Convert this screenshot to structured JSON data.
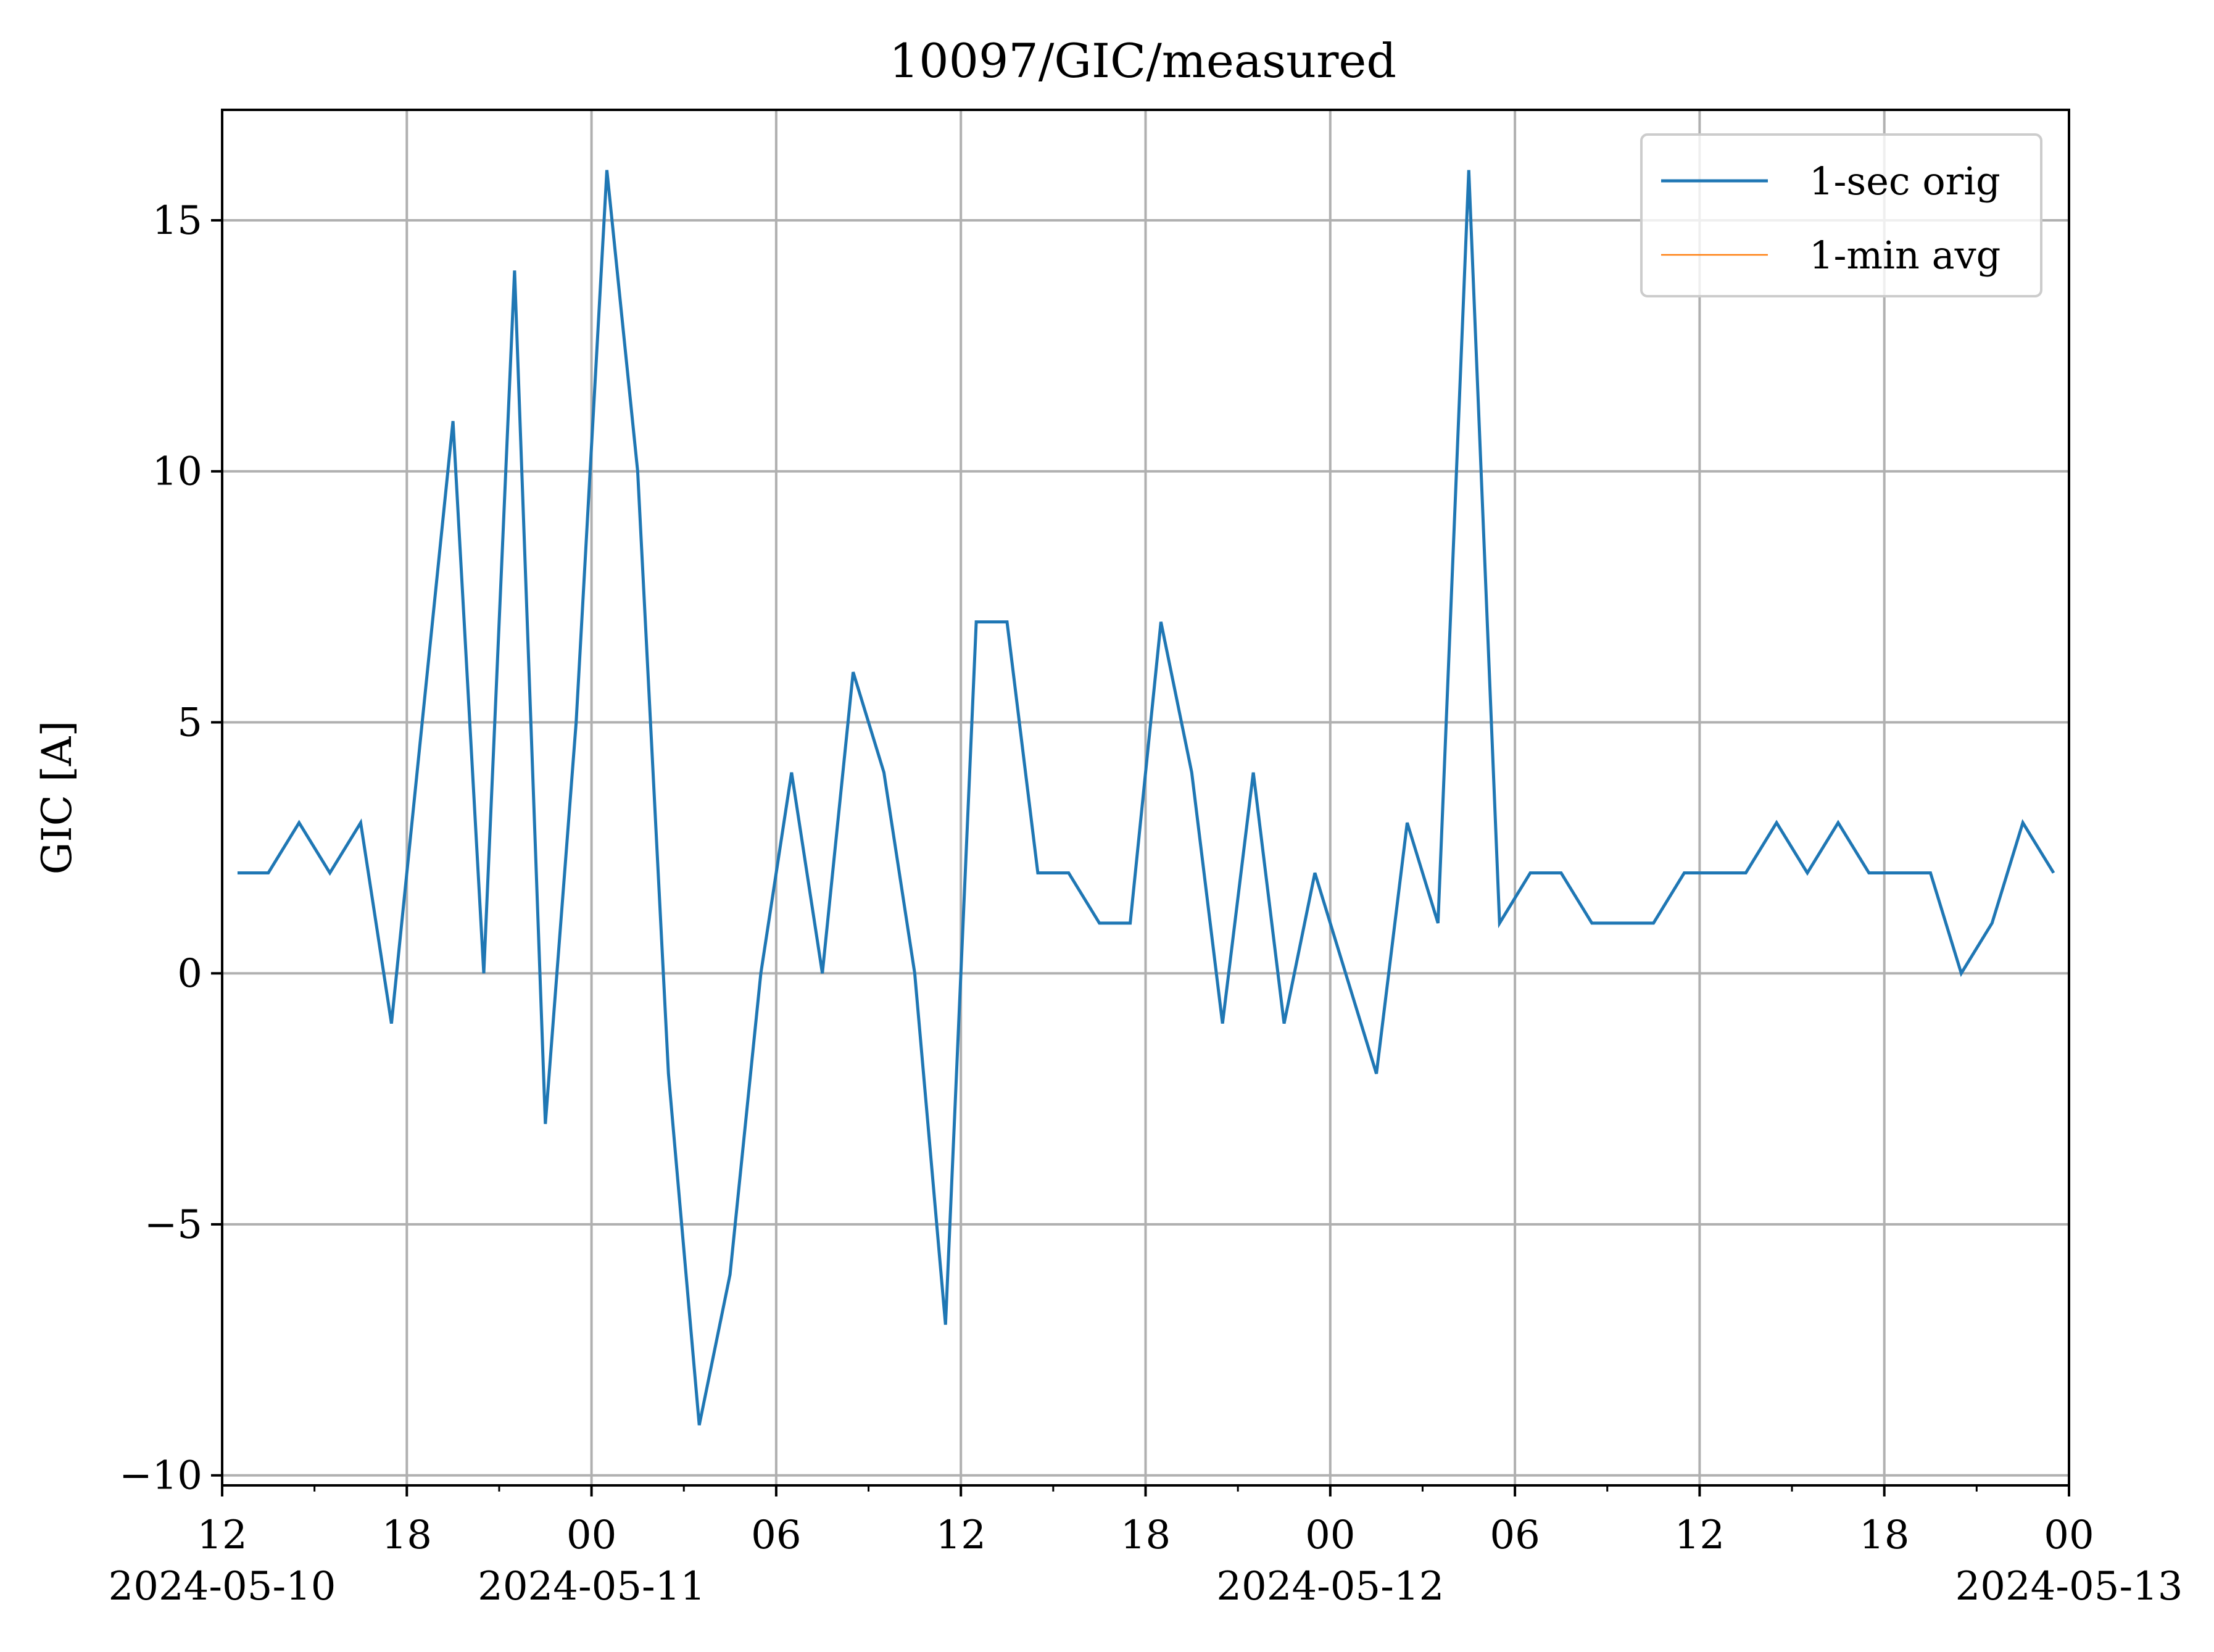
{
  "chart_data": {
    "type": "line",
    "title": "10097/GIC/measured",
    "xlabel": "",
    "ylabel": "GIC [A]",
    "grid": true,
    "legend_position": "top-right",
    "xlim": [
      "2024-05-10T12:00",
      "2024-05-13T00:00"
    ],
    "ylim": [
      -10.2,
      17.2
    ],
    "y_ticks": [
      {
        "value": -10,
        "label": "−10"
      },
      {
        "value": -5,
        "label": "−5"
      },
      {
        "value": 0,
        "label": "0"
      },
      {
        "value": 5,
        "label": "5"
      },
      {
        "value": 10,
        "label": "10"
      },
      {
        "value": 15,
        "label": "15"
      }
    ],
    "x_major_ticks": [
      {
        "time": "2024-05-10T12:00",
        "label": "12",
        "date_label": "2024-05-10"
      },
      {
        "time": "2024-05-10T18:00",
        "label": "18",
        "date_label": ""
      },
      {
        "time": "2024-05-11T00:00",
        "label": "00",
        "date_label": "2024-05-11"
      },
      {
        "time": "2024-05-11T06:00",
        "label": "06",
        "date_label": ""
      },
      {
        "time": "2024-05-11T12:00",
        "label": "12",
        "date_label": ""
      },
      {
        "time": "2024-05-11T18:00",
        "label": "18",
        "date_label": ""
      },
      {
        "time": "2024-05-12T00:00",
        "label": "00",
        "date_label": "2024-05-12"
      },
      {
        "time": "2024-05-12T06:00",
        "label": "06",
        "date_label": ""
      },
      {
        "time": "2024-05-12T12:00",
        "label": "12",
        "date_label": ""
      },
      {
        "time": "2024-05-12T18:00",
        "label": "18",
        "date_label": ""
      },
      {
        "time": "2024-05-13T00:00",
        "label": "00",
        "date_label": "2024-05-13"
      }
    ],
    "x_minor_ticks": [
      "2024-05-10T15:00",
      "2024-05-10T21:00",
      "2024-05-11T03:00",
      "2024-05-11T09:00",
      "2024-05-11T15:00",
      "2024-05-11T21:00",
      "2024-05-12T03:00",
      "2024-05-12T09:00",
      "2024-05-12T15:00",
      "2024-05-12T21:00"
    ],
    "series": [
      {
        "name": "1-sec orig",
        "color": "#1f77b4",
        "points": [
          [
            "2024-05-10T12:30",
            2
          ],
          [
            "2024-05-10T13:30",
            2
          ],
          [
            "2024-05-10T14:30",
            3
          ],
          [
            "2024-05-10T15:30",
            2
          ],
          [
            "2024-05-10T16:30",
            3
          ],
          [
            "2024-05-10T17:30",
            -1
          ],
          [
            "2024-05-10T18:30",
            5
          ],
          [
            "2024-05-10T19:30",
            11
          ],
          [
            "2024-05-10T20:30",
            0
          ],
          [
            "2024-05-10T21:30",
            14
          ],
          [
            "2024-05-10T22:30",
            -3
          ],
          [
            "2024-05-10T23:30",
            5
          ],
          [
            "2024-05-11T00:30",
            16
          ],
          [
            "2024-05-11T01:30",
            10
          ],
          [
            "2024-05-11T02:30",
            -2
          ],
          [
            "2024-05-11T03:30",
            -9
          ],
          [
            "2024-05-11T04:30",
            -6
          ],
          [
            "2024-05-11T05:30",
            0
          ],
          [
            "2024-05-11T06:30",
            4
          ],
          [
            "2024-05-11T07:30",
            0
          ],
          [
            "2024-05-11T08:30",
            6
          ],
          [
            "2024-05-11T09:30",
            4
          ],
          [
            "2024-05-11T10:30",
            0
          ],
          [
            "2024-05-11T11:30",
            -7
          ],
          [
            "2024-05-11T12:30",
            7
          ],
          [
            "2024-05-11T13:30",
            7
          ],
          [
            "2024-05-11T14:30",
            2
          ],
          [
            "2024-05-11T15:30",
            2
          ],
          [
            "2024-05-11T16:30",
            1
          ],
          [
            "2024-05-11T17:30",
            1
          ],
          [
            "2024-05-11T18:30",
            7
          ],
          [
            "2024-05-11T19:30",
            4
          ],
          [
            "2024-05-11T20:30",
            -1
          ],
          [
            "2024-05-11T21:30",
            4
          ],
          [
            "2024-05-11T22:30",
            -1
          ],
          [
            "2024-05-11T23:30",
            2
          ],
          [
            "2024-05-12T00:30",
            0
          ],
          [
            "2024-05-12T01:30",
            -2
          ],
          [
            "2024-05-12T02:30",
            3
          ],
          [
            "2024-05-12T03:30",
            1
          ],
          [
            "2024-05-12T04:30",
            16
          ],
          [
            "2024-05-12T05:30",
            1
          ],
          [
            "2024-05-12T06:30",
            2
          ],
          [
            "2024-05-12T07:30",
            2
          ],
          [
            "2024-05-12T08:30",
            1
          ],
          [
            "2024-05-12T09:30",
            1
          ],
          [
            "2024-05-12T10:30",
            1
          ],
          [
            "2024-05-12T11:30",
            2
          ],
          [
            "2024-05-12T12:30",
            2
          ],
          [
            "2024-05-12T13:30",
            2
          ],
          [
            "2024-05-12T14:30",
            3
          ],
          [
            "2024-05-12T15:30",
            2
          ],
          [
            "2024-05-12T16:30",
            3
          ],
          [
            "2024-05-12T17:30",
            2
          ],
          [
            "2024-05-12T18:30",
            2
          ],
          [
            "2024-05-12T19:30",
            2
          ],
          [
            "2024-05-12T20:30",
            0
          ],
          [
            "2024-05-12T21:30",
            1
          ],
          [
            "2024-05-12T22:30",
            3
          ],
          [
            "2024-05-12T23:30",
            2
          ]
        ]
      },
      {
        "name": "1-min avg",
        "color": "#ff7f0e",
        "points": []
      }
    ]
  }
}
